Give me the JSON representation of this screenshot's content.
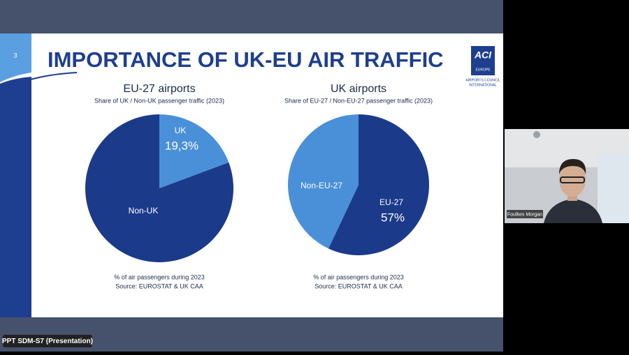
{
  "slide": {
    "number": "3",
    "title": "IMPORTANCE OF UK-EU AIR TRAFFIC",
    "logo": [
      "ACI",
      "EUROPE",
      "AIRPORTS COUNCIL",
      "INTERNATIONAL"
    ]
  },
  "chart_data": [
    {
      "type": "pie",
      "title": "EU-27 airports",
      "subtitle": "Share of UK / Non-UK passenger traffic (2023)",
      "categories": [
        "UK",
        "Non-UK"
      ],
      "values": [
        19.3,
        80.7
      ],
      "value_labels": [
        "19,3%",
        null
      ],
      "colors": [
        "#4a90d9",
        "#1b3a8a"
      ],
      "notes": [
        "% of air passengers during 2023",
        "Source: EUROSTAT & UK CAA"
      ]
    },
    {
      "type": "pie",
      "title": "UK airports",
      "subtitle": "Share of EU-27 / Non-EU-27 passenger traffic (2023)",
      "categories": [
        "EU-27",
        "Non-EU-27"
      ],
      "values": [
        57,
        43
      ],
      "value_labels": [
        "57%",
        null
      ],
      "colors": [
        "#1b3a8a",
        "#4a90d9"
      ],
      "notes": [
        "% of air passengers during 2023",
        "Source: EUROSTAT & UK CAA"
      ]
    }
  ],
  "presenter": "Foulkes Morgan",
  "window_label": "PPT SDM-S7 (Presentation)"
}
